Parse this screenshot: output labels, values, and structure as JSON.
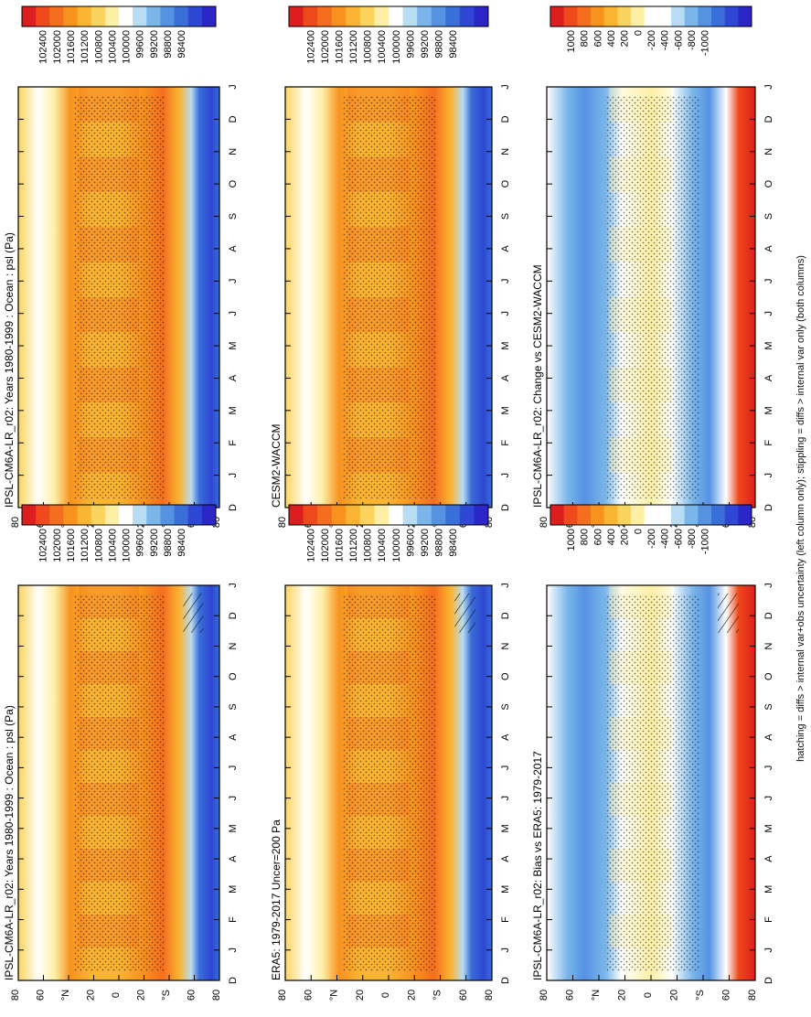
{
  "caption": "hatching = diffs > internal var+obs uncertainty (left column only); stippling = diffs > internal var only (both columns)",
  "month_ticks": [
    "D",
    "J",
    "F",
    "M",
    "A",
    "M",
    "J",
    "J",
    "A",
    "S",
    "O",
    "N",
    "D",
    "J"
  ],
  "lat_ticks": [
    "80",
    "60",
    "°N",
    "20",
    "0",
    "20",
    "°S",
    "60",
    "80"
  ],
  "abs_levels": [
    "102400",
    "102000",
    "101600",
    "101200",
    "100800",
    "100400",
    "100000",
    "99600",
    "99200",
    "98800",
    "98400"
  ],
  "diff_levels": [
    "1000",
    "800",
    "600",
    "400",
    "200",
    "0",
    "-200",
    "-400",
    "-600",
    "-800",
    "-1000"
  ],
  "abs_colors": [
    "#dd1e1e",
    "#ee4a1c",
    "#f56e1e",
    "#f8921f",
    "#fab432",
    "#fcd35c",
    "#fdf0a5",
    "#ffffff",
    "#b8dcf2",
    "#7ab6ea",
    "#5592e2",
    "#3a6ed8",
    "#2e47d4",
    "#2c26c9"
  ],
  "diff_colors": [
    "#dd1e1e",
    "#ee4a1c",
    "#f56e1e",
    "#f8921f",
    "#fab432",
    "#fcd35c",
    "#fdf0a5",
    "#ffffff",
    "#ffffff",
    "#b8dcf2",
    "#7ab6ea",
    "#5592e2",
    "#3a6ed8",
    "#2e47d4",
    "#2c26c9"
  ],
  "panels": [
    {
      "title": "IPSL-CM6A-LR_r02: Years 1980-1999 : Ocean : psl (Pa)",
      "kind": "abs"
    },
    {
      "title": "ERA5: 1979-2017 Uncer=200 Pa",
      "kind": "abs"
    },
    {
      "title": "IPSL-CM6A-LR_r02: Bias vs ERA5: 1979-2017",
      "kind": "diff"
    },
    {
      "title": "IPSL-CM6A-LR_r02: Years 1980-1999 : Ocean : psl (Pa)",
      "kind": "abs"
    },
    {
      "title": "CESM2-WACCM",
      "kind": "abs"
    },
    {
      "title": "IPSL-CM6A-LR_r02: Change vs CESM2-WACCM",
      "kind": "diff"
    }
  ],
  "chart_data": {
    "type": "heatmap",
    "x_axis": "month (D J F M A M J J A S O N D J)",
    "y_axis": "latitude 90S-90N",
    "abs_profile_pa": [
      {
        "lat": -80,
        "value": 98400
      },
      {
        "lat": -65,
        "value": 98800
      },
      {
        "lat": -55,
        "value": 100400
      },
      {
        "lat": -35,
        "value": 101600
      },
      {
        "lat": -25,
        "value": 101200
      },
      {
        "lat": -10,
        "value": 101200
      },
      {
        "lat": 0,
        "value": 101200
      },
      {
        "lat": 20,
        "value": 101600
      },
      {
        "lat": 35,
        "value": 101600
      },
      {
        "lat": 50,
        "value": 101200
      },
      {
        "lat": 60,
        "value": 100800
      },
      {
        "lat": 80,
        "value": 101200
      }
    ]
  }
}
